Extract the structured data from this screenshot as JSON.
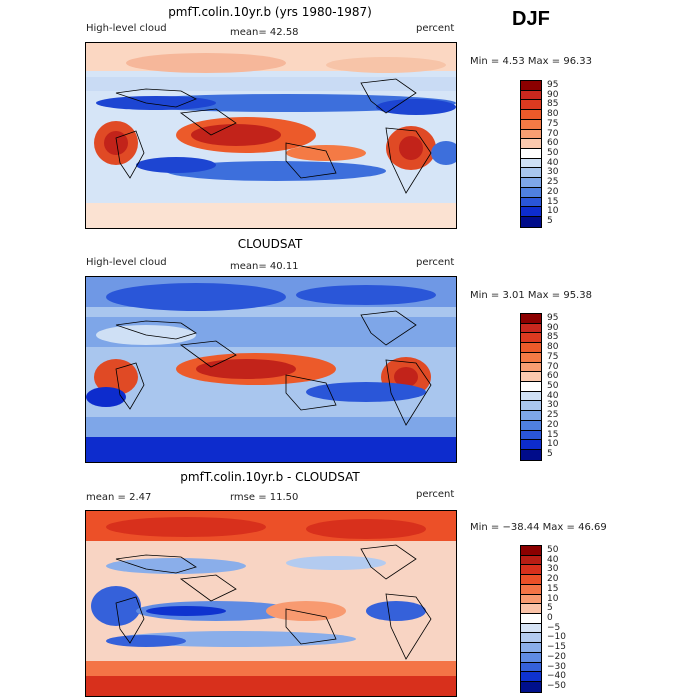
{
  "season": "DJF",
  "panels": [
    {
      "title": "pmfT.colin.10yr.b (yrs 1980-1987)",
      "left_label": "High-level cloud",
      "stat1": "mean=   42.58",
      "stat2": "",
      "units": "percent",
      "minmax": "Min =    4.53  Max =   96.33",
      "colorbar": {
        "labels": [
          "95",
          "90",
          "85",
          "80",
          "75",
          "70",
          "60",
          "50",
          "40",
          "30",
          "25",
          "20",
          "15",
          "10",
          "5"
        ],
        "colors": [
          "#8b0000",
          "#c8281e",
          "#dc3a20",
          "#ec5a2a",
          "#f47a45",
          "#f89e72",
          "#fbc9ae",
          "#ffffff",
          "#cfe0f5",
          "#a9c6ee",
          "#7ea6e8",
          "#4f80e0",
          "#2a56d8",
          "#0d2ccd",
          "#000c8a"
        ]
      }
    },
    {
      "title": "CLOUDSAT",
      "left_label": "High-level cloud",
      "stat1": "mean=   40.11",
      "stat2": "",
      "units": "percent",
      "minmax": "Min =    3.01  Max =   95.38",
      "colorbar": {
        "labels": [
          "95",
          "90",
          "85",
          "80",
          "75",
          "70",
          "60",
          "50",
          "40",
          "30",
          "25",
          "20",
          "15",
          "10",
          "5"
        ],
        "colors": [
          "#8b0000",
          "#c8281e",
          "#dc3a20",
          "#ec5a2a",
          "#f47a45",
          "#f89e72",
          "#fbc9ae",
          "#ffffff",
          "#cfe0f5",
          "#a9c6ee",
          "#7ea6e8",
          "#4f80e0",
          "#2a56d8",
          "#0d2ccd",
          "#000c8a"
        ]
      }
    },
    {
      "title": "pmfT.colin.10yr.b - CLOUDSAT",
      "left_label": "",
      "stat1": "mean =    2.47",
      "stat2": "rmse =   11.50",
      "units": "percent",
      "minmax": "Min = −38.44  Max =   46.69",
      "colorbar": {
        "labels": [
          "50",
          "40",
          "30",
          "20",
          "15",
          "10",
          "5",
          "0",
          "−5",
          "−10",
          "−15",
          "−20",
          "−30",
          "−40",
          "−50"
        ],
        "colors": [
          "#8b0000",
          "#b81d14",
          "#d8301c",
          "#ec5028",
          "#f47446",
          "#f89a70",
          "#fbc3a8",
          "#ffffff",
          "#d7e4f6",
          "#b3cbf0",
          "#8aaeea",
          "#5f8be3",
          "#3561da",
          "#0f33cf",
          "#00108c"
        ]
      }
    }
  ]
}
